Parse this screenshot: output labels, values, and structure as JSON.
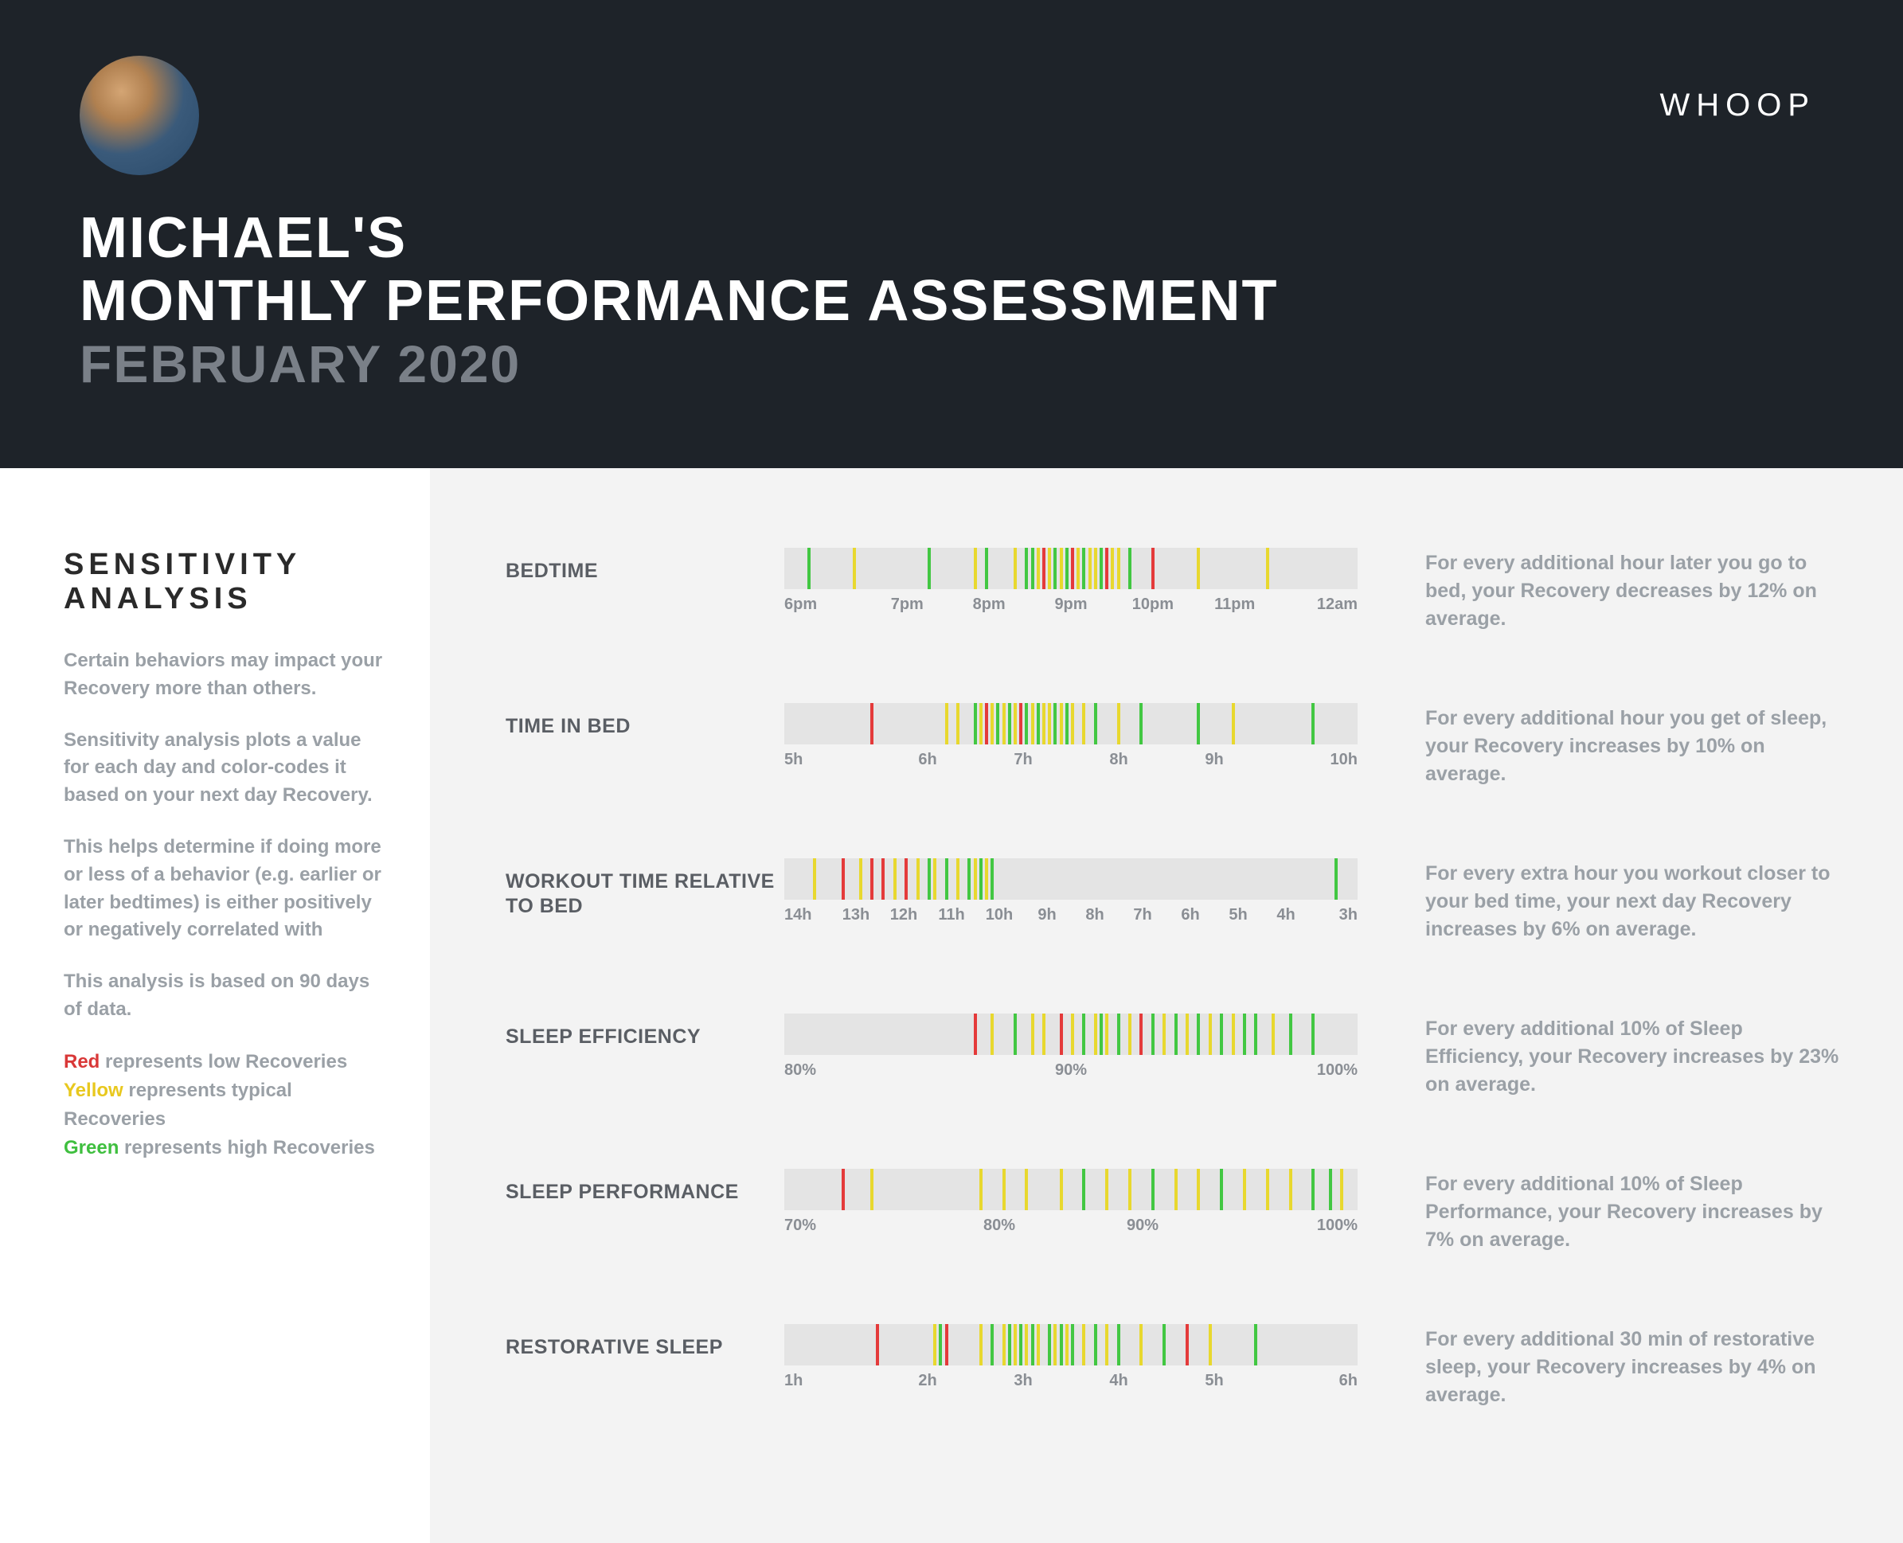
{
  "header": {
    "title_line1": "MICHAEL'S",
    "title_line2": "MONTHLY PERFORMANCE ASSESSMENT",
    "date": "FEBRUARY 2020",
    "logo": "WHOOP"
  },
  "colors": {
    "header_bg": "#1e2329",
    "main_bg": "#f3f3f3",
    "strip_bg": "#e4e4e4",
    "label_text": "#5a5e64",
    "desc_text": "#9aa0a6",
    "red": "#e43a3a",
    "yellow": "#e8d82e",
    "green": "#42c742"
  },
  "sidebar": {
    "title": "SENSITIVITY ANALYSIS",
    "p1": "Certain behaviors may impact your Recovery more than others.",
    "p2": "Sensitivity analysis plots a value for each day and color-codes it based on your next day Recovery.",
    "p3": "This helps determine if doing more or less of a behavior (e.g. earlier or later bedtimes) is either positively or negatively correlated with",
    "p4": "This analysis is based on 90 days of data.",
    "legend_red_label": "Red",
    "legend_red_text": " represents low Recoveries",
    "legend_yellow_label": "Yellow",
    "legend_yellow_text": " represents typical Recoveries",
    "legend_green_label": "Green",
    "legend_green_text": " represents high Recoveries"
  },
  "metrics": [
    {
      "label": "BEDTIME",
      "desc": "For every additional hour later you go to bed, your Recovery decreases by 12% on average.",
      "axis": [
        "6pm",
        "7pm",
        "8pm",
        "9pm",
        "10pm",
        "11pm",
        "12am"
      ],
      "ticks": [
        {
          "p": 4,
          "c": "green"
        },
        {
          "p": 12,
          "c": "yellow"
        },
        {
          "p": 25,
          "c": "green"
        },
        {
          "p": 33,
          "c": "yellow"
        },
        {
          "p": 35,
          "c": "green"
        },
        {
          "p": 40,
          "c": "yellow"
        },
        {
          "p": 42,
          "c": "green"
        },
        {
          "p": 43,
          "c": "green"
        },
        {
          "p": 44,
          "c": "yellow"
        },
        {
          "p": 45,
          "c": "red"
        },
        {
          "p": 46,
          "c": "yellow"
        },
        {
          "p": 47,
          "c": "green"
        },
        {
          "p": 48,
          "c": "yellow"
        },
        {
          "p": 49,
          "c": "green"
        },
        {
          "p": 50,
          "c": "red"
        },
        {
          "p": 51,
          "c": "yellow"
        },
        {
          "p": 52,
          "c": "green"
        },
        {
          "p": 53,
          "c": "yellow"
        },
        {
          "p": 54,
          "c": "yellow"
        },
        {
          "p": 55,
          "c": "green"
        },
        {
          "p": 56,
          "c": "red"
        },
        {
          "p": 57,
          "c": "yellow"
        },
        {
          "p": 58,
          "c": "yellow"
        },
        {
          "p": 60,
          "c": "green"
        },
        {
          "p": 64,
          "c": "red"
        },
        {
          "p": 72,
          "c": "yellow"
        },
        {
          "p": 84,
          "c": "yellow"
        }
      ]
    },
    {
      "label": "TIME IN BED",
      "desc": "For every additional hour you get of sleep, your Recovery increases by 10% on average.",
      "axis": [
        "5h",
        "6h",
        "7h",
        "8h",
        "9h",
        "10h"
      ],
      "ticks": [
        {
          "p": 15,
          "c": "red"
        },
        {
          "p": 28,
          "c": "yellow"
        },
        {
          "p": 30,
          "c": "yellow"
        },
        {
          "p": 33,
          "c": "green"
        },
        {
          "p": 34,
          "c": "yellow"
        },
        {
          "p": 35,
          "c": "red"
        },
        {
          "p": 36,
          "c": "yellow"
        },
        {
          "p": 37,
          "c": "green"
        },
        {
          "p": 38,
          "c": "yellow"
        },
        {
          "p": 39,
          "c": "green"
        },
        {
          "p": 40,
          "c": "yellow"
        },
        {
          "p": 41,
          "c": "red"
        },
        {
          "p": 42,
          "c": "green"
        },
        {
          "p": 43,
          "c": "yellow"
        },
        {
          "p": 44,
          "c": "green"
        },
        {
          "p": 45,
          "c": "yellow"
        },
        {
          "p": 46,
          "c": "yellow"
        },
        {
          "p": 47,
          "c": "green"
        },
        {
          "p": 48,
          "c": "yellow"
        },
        {
          "p": 49,
          "c": "green"
        },
        {
          "p": 50,
          "c": "yellow"
        },
        {
          "p": 52,
          "c": "yellow"
        },
        {
          "p": 54,
          "c": "green"
        },
        {
          "p": 58,
          "c": "yellow"
        },
        {
          "p": 62,
          "c": "green"
        },
        {
          "p": 72,
          "c": "green"
        },
        {
          "p": 78,
          "c": "yellow"
        },
        {
          "p": 92,
          "c": "green"
        }
      ]
    },
    {
      "label": "WORKOUT TIME RELATIVE TO BED",
      "desc": "For every extra hour you workout closer to your bed time, your next day Recovery increases by 6% on average.",
      "axis": [
        "14h",
        "13h",
        "12h",
        "11h",
        "10h",
        "9h",
        "8h",
        "7h",
        "6h",
        "5h",
        "4h",
        "3h"
      ],
      "ticks": [
        {
          "p": 5,
          "c": "yellow"
        },
        {
          "p": 10,
          "c": "red"
        },
        {
          "p": 13,
          "c": "yellow"
        },
        {
          "p": 15,
          "c": "red"
        },
        {
          "p": 17,
          "c": "red"
        },
        {
          "p": 19,
          "c": "yellow"
        },
        {
          "p": 21,
          "c": "red"
        },
        {
          "p": 23,
          "c": "yellow"
        },
        {
          "p": 25,
          "c": "green"
        },
        {
          "p": 26,
          "c": "yellow"
        },
        {
          "p": 28,
          "c": "green"
        },
        {
          "p": 30,
          "c": "yellow"
        },
        {
          "p": 32,
          "c": "green"
        },
        {
          "p": 33,
          "c": "yellow"
        },
        {
          "p": 34,
          "c": "green"
        },
        {
          "p": 35,
          "c": "yellow"
        },
        {
          "p": 36,
          "c": "green"
        },
        {
          "p": 96,
          "c": "green"
        }
      ]
    },
    {
      "label": "SLEEP EFFICIENCY",
      "desc": "For every additional 10% of Sleep Efficiency, your Recovery increases by 23% on average.",
      "axis": [
        "80%",
        "90%",
        "100%"
      ],
      "ticks": [
        {
          "p": 33,
          "c": "red"
        },
        {
          "p": 36,
          "c": "yellow"
        },
        {
          "p": 40,
          "c": "green"
        },
        {
          "p": 43,
          "c": "yellow"
        },
        {
          "p": 45,
          "c": "yellow"
        },
        {
          "p": 48,
          "c": "red"
        },
        {
          "p": 50,
          "c": "yellow"
        },
        {
          "p": 52,
          "c": "green"
        },
        {
          "p": 54,
          "c": "yellow"
        },
        {
          "p": 55,
          "c": "green"
        },
        {
          "p": 56,
          "c": "yellow"
        },
        {
          "p": 58,
          "c": "green"
        },
        {
          "p": 60,
          "c": "yellow"
        },
        {
          "p": 62,
          "c": "red"
        },
        {
          "p": 64,
          "c": "green"
        },
        {
          "p": 66,
          "c": "yellow"
        },
        {
          "p": 68,
          "c": "green"
        },
        {
          "p": 70,
          "c": "yellow"
        },
        {
          "p": 72,
          "c": "green"
        },
        {
          "p": 74,
          "c": "yellow"
        },
        {
          "p": 76,
          "c": "green"
        },
        {
          "p": 78,
          "c": "yellow"
        },
        {
          "p": 80,
          "c": "green"
        },
        {
          "p": 82,
          "c": "green"
        },
        {
          "p": 85,
          "c": "yellow"
        },
        {
          "p": 88,
          "c": "green"
        },
        {
          "p": 92,
          "c": "green"
        }
      ]
    },
    {
      "label": "SLEEP PERFORMANCE",
      "desc": "For every additional 10% of Sleep Performance, your Recovery increases by 7% on average.",
      "axis": [
        "70%",
        "80%",
        "90%",
        "100%"
      ],
      "ticks": [
        {
          "p": 10,
          "c": "red"
        },
        {
          "p": 15,
          "c": "yellow"
        },
        {
          "p": 34,
          "c": "yellow"
        },
        {
          "p": 38,
          "c": "yellow"
        },
        {
          "p": 42,
          "c": "yellow"
        },
        {
          "p": 48,
          "c": "yellow"
        },
        {
          "p": 52,
          "c": "green"
        },
        {
          "p": 56,
          "c": "yellow"
        },
        {
          "p": 60,
          "c": "yellow"
        },
        {
          "p": 64,
          "c": "green"
        },
        {
          "p": 68,
          "c": "yellow"
        },
        {
          "p": 72,
          "c": "yellow"
        },
        {
          "p": 76,
          "c": "green"
        },
        {
          "p": 80,
          "c": "yellow"
        },
        {
          "p": 84,
          "c": "yellow"
        },
        {
          "p": 88,
          "c": "yellow"
        },
        {
          "p": 92,
          "c": "green"
        },
        {
          "p": 95,
          "c": "green"
        },
        {
          "p": 97,
          "c": "yellow"
        }
      ]
    },
    {
      "label": "RESTORATIVE SLEEP",
      "desc": "For every additional 30 min of restorative sleep, your Recovery increases by 4% on average.",
      "axis": [
        "1h",
        "2h",
        "3h",
        "4h",
        "5h",
        "6h"
      ],
      "ticks": [
        {
          "p": 16,
          "c": "red"
        },
        {
          "p": 26,
          "c": "yellow"
        },
        {
          "p": 27,
          "c": "green"
        },
        {
          "p": 28,
          "c": "red"
        },
        {
          "p": 34,
          "c": "yellow"
        },
        {
          "p": 36,
          "c": "green"
        },
        {
          "p": 38,
          "c": "yellow"
        },
        {
          "p": 39,
          "c": "green"
        },
        {
          "p": 40,
          "c": "yellow"
        },
        {
          "p": 41,
          "c": "green"
        },
        {
          "p": 42,
          "c": "yellow"
        },
        {
          "p": 43,
          "c": "green"
        },
        {
          "p": 44,
          "c": "yellow"
        },
        {
          "p": 46,
          "c": "green"
        },
        {
          "p": 47,
          "c": "yellow"
        },
        {
          "p": 48,
          "c": "green"
        },
        {
          "p": 49,
          "c": "yellow"
        },
        {
          "p": 50,
          "c": "green"
        },
        {
          "p": 52,
          "c": "yellow"
        },
        {
          "p": 54,
          "c": "green"
        },
        {
          "p": 56,
          "c": "yellow"
        },
        {
          "p": 58,
          "c": "green"
        },
        {
          "p": 62,
          "c": "yellow"
        },
        {
          "p": 66,
          "c": "green"
        },
        {
          "p": 70,
          "c": "red"
        },
        {
          "p": 74,
          "c": "yellow"
        },
        {
          "p": 82,
          "c": "green"
        }
      ]
    }
  ]
}
